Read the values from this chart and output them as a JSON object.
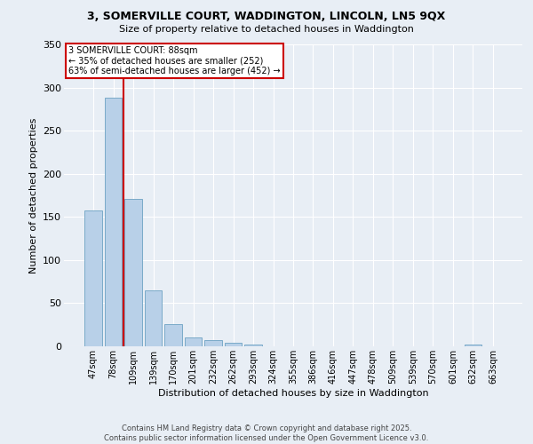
{
  "title1": "3, SOMERVILLE COURT, WADDINGTON, LINCOLN, LN5 9QX",
  "title2": "Size of property relative to detached houses in Waddington",
  "xlabel": "Distribution of detached houses by size in Waddington",
  "ylabel": "Number of detached properties",
  "categories": [
    "47sqm",
    "78sqm",
    "109sqm",
    "139sqm",
    "170sqm",
    "201sqm",
    "232sqm",
    "262sqm",
    "293sqm",
    "324sqm",
    "355sqm",
    "386sqm",
    "416sqm",
    "447sqm",
    "478sqm",
    "509sqm",
    "539sqm",
    "570sqm",
    "601sqm",
    "632sqm",
    "663sqm"
  ],
  "values": [
    158,
    288,
    171,
    65,
    26,
    10,
    7,
    4,
    2,
    0,
    0,
    0,
    0,
    0,
    0,
    0,
    0,
    0,
    0,
    2,
    0
  ],
  "bar_color": "#b8d0e8",
  "bar_edge_color": "#7aaac8",
  "vline_x": 1.5,
  "vline_color": "#cc0000",
  "annotation_title": "3 SOMERVILLE COURT: 88sqm",
  "annotation_line1": "← 35% of detached houses are smaller (252)",
  "annotation_line2": "63% of semi-detached houses are larger (452) →",
  "annotation_box_color": "#cc0000",
  "ylim": [
    0,
    350
  ],
  "yticks": [
    0,
    50,
    100,
    150,
    200,
    250,
    300,
    350
  ],
  "background_color": "#e8eef5",
  "grid_color": "#ffffff",
  "footer1": "Contains HM Land Registry data © Crown copyright and database right 2025.",
  "footer2": "Contains public sector information licensed under the Open Government Licence v3.0."
}
